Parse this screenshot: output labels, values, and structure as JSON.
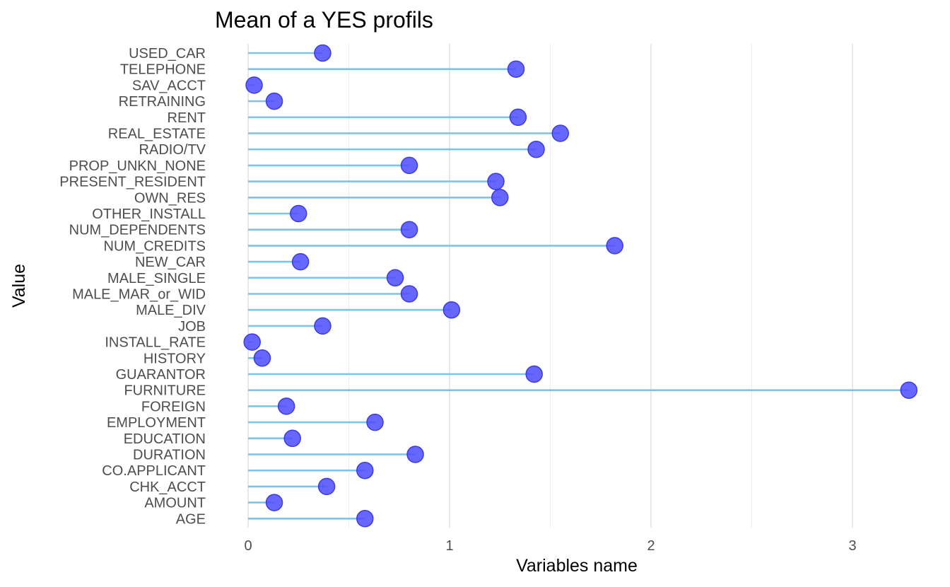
{
  "chart_data": {
    "type": "lollipop",
    "title": "Mean of a YES profils",
    "xlabel": "Variables name",
    "ylabel": "Value",
    "xlim": [
      0,
      3.3
    ],
    "xticks": [
      0,
      1,
      2,
      3
    ],
    "grid": true,
    "legend": "none",
    "colors": {
      "stem": "#7ec4e6",
      "dot": "#4c4cff"
    },
    "categories": [
      "USED_CAR",
      "TELEPHONE",
      "SAV_ACCT",
      "RETRAINING",
      "RENT",
      "REAL_ESTATE",
      "RADIO/TV",
      "PROP_UNKN_NONE",
      "PRESENT_RESIDENT",
      "OWN_RES",
      "OTHER_INSTALL",
      "NUM_DEPENDENTS",
      "NUM_CREDITS",
      "NEW_CAR",
      "MALE_SINGLE",
      "MALE_MAR_or_WID",
      "MALE_DIV",
      "JOB",
      "INSTALL_RATE",
      "HISTORY",
      "GUARANTOR",
      "FURNITURE",
      "FOREIGN",
      "EMPLOYMENT",
      "EDUCATION",
      "DURATION",
      "CO.APPLICANT",
      "CHK_ACCT",
      "AMOUNT",
      "AGE"
    ],
    "values": [
      0.37,
      1.33,
      0.03,
      0.13,
      1.34,
      1.55,
      1.43,
      0.8,
      1.23,
      1.25,
      0.25,
      0.8,
      1.82,
      0.26,
      0.73,
      0.8,
      1.01,
      0.37,
      0.02,
      0.07,
      1.42,
      3.28,
      0.19,
      0.63,
      0.22,
      0.83,
      0.58,
      0.39,
      0.13,
      0.58
    ]
  }
}
